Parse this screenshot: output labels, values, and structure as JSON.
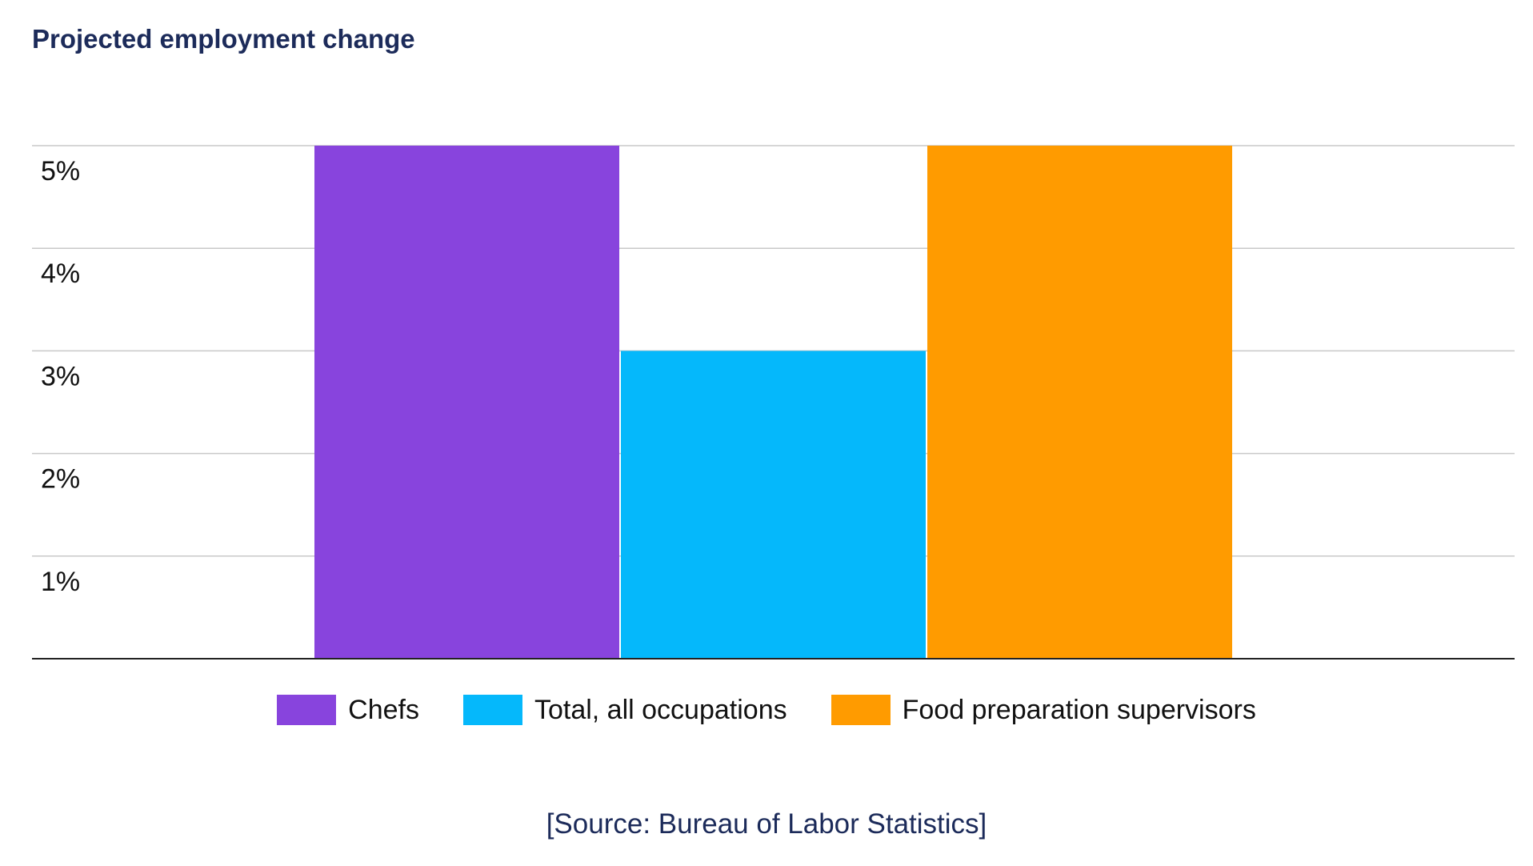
{
  "chart_data": {
    "type": "bar",
    "title": "Projected employment change",
    "categories": [
      "Chefs",
      "Total, all occupations",
      "Food preparation supervisors"
    ],
    "values": [
      5,
      3,
      5
    ],
    "unit": "%",
    "colors": [
      "#8844dd",
      "#05b8fb",
      "#ff9b00"
    ],
    "ylim": [
      0,
      5
    ],
    "yticks": [
      1,
      2,
      3,
      4,
      5
    ],
    "ytick_labels": [
      "1%",
      "2%",
      "3%",
      "4%",
      "5%"
    ],
    "grid": true,
    "legend_position": "bottom-center",
    "xlabel": "",
    "ylabel": ""
  },
  "source_note": "[Source: Bureau of Labor Statistics]",
  "colors": {
    "title": "#1c2b5a",
    "gridline": "#c8c8c8",
    "axis": "#222222",
    "tick_text": "#111111"
  }
}
